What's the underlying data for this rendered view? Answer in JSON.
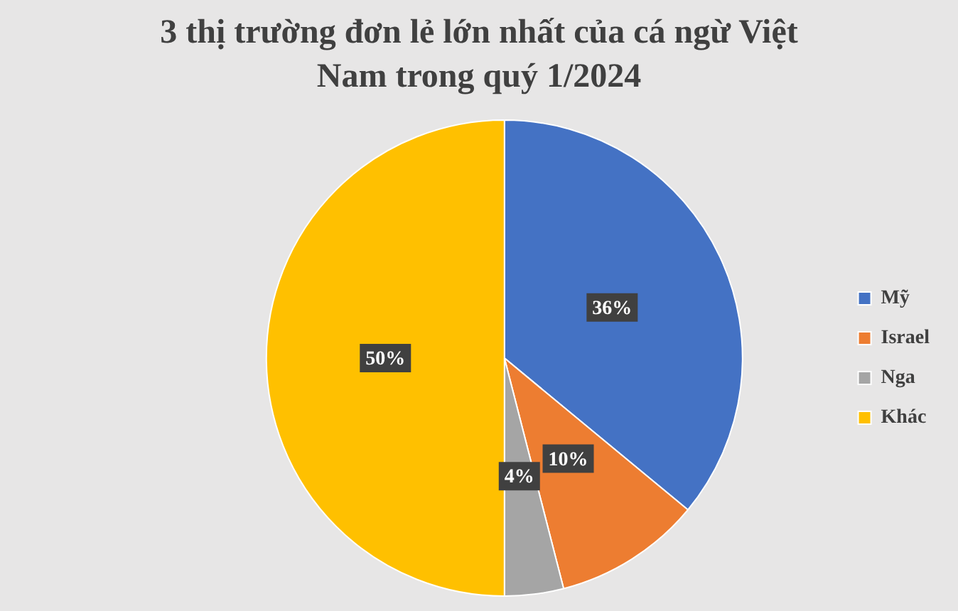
{
  "chart_data": {
    "type": "pie",
    "title": "3 thị trường đơn lẻ lớn nhất của cá ngừ Việt Nam trong quý 1/2024",
    "categories": [
      "Mỹ",
      "Israel",
      "Nga",
      "Khác"
    ],
    "values": [
      36,
      10,
      4,
      50
    ],
    "colors": [
      "#4472c4",
      "#ed7d31",
      "#a5a5a5",
      "#ffc000"
    ],
    "value_labels": [
      "36%",
      "10%",
      "4%",
      "50%"
    ],
    "legend": "right"
  }
}
